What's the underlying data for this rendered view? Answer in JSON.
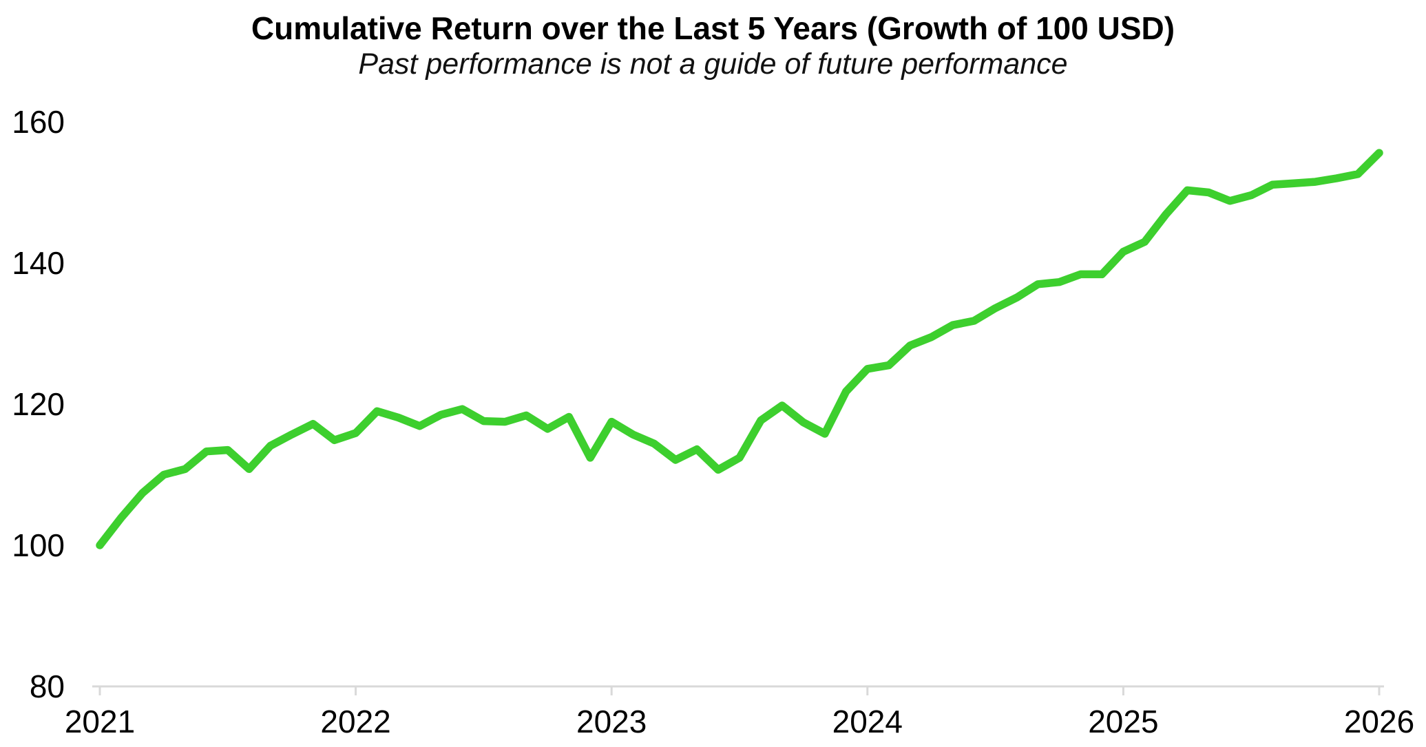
{
  "title": "Cumulative Return over the Last 5 Years (Growth of 100 USD)",
  "subtitle": "Past performance is not a guide of future performance",
  "chart_data": {
    "type": "line",
    "title": "Cumulative Return over the Last 5 Years (Growth of 100 USD)",
    "subtitle": "Past performance is not a guide of future performance",
    "frequency": "monthly",
    "x_start_label": "2021",
    "x_end_label": "2026",
    "xticklabels": [
      "2021",
      "2022",
      "2023",
      "2024",
      "2025",
      "2026"
    ],
    "yticks": [
      80,
      100,
      120,
      140,
      160
    ],
    "ylim": [
      80,
      160
    ],
    "grid": false,
    "legend": false,
    "line_color": "#3dcf2e",
    "axis_color": "#d9d9d9",
    "text_color": "#000000",
    "series": [
      {
        "name": "Growth of 100 USD",
        "start": "Jan 2021",
        "end": "Jan 2026",
        "values": [
          100.0,
          103.9,
          107.4,
          110.0,
          110.8,
          113.3,
          113.5,
          110.8,
          114.1,
          115.7,
          117.2,
          114.9,
          115.9,
          119.0,
          118.1,
          116.9,
          118.5,
          119.3,
          117.6,
          117.5,
          118.4,
          116.5,
          118.2,
          112.4,
          117.5,
          115.7,
          114.4,
          112.1,
          113.6,
          110.7,
          112.4,
          117.7,
          119.8,
          117.4,
          115.8,
          121.8,
          125.0,
          125.5,
          128.3,
          129.5,
          131.2,
          131.8,
          133.6,
          135.1,
          137.0,
          137.3,
          138.4,
          138.4,
          141.6,
          143.0,
          146.9,
          150.3,
          150.0,
          148.8,
          149.6,
          151.1,
          151.3,
          151.5,
          152.0,
          152.6,
          155.6
        ]
      }
    ]
  }
}
